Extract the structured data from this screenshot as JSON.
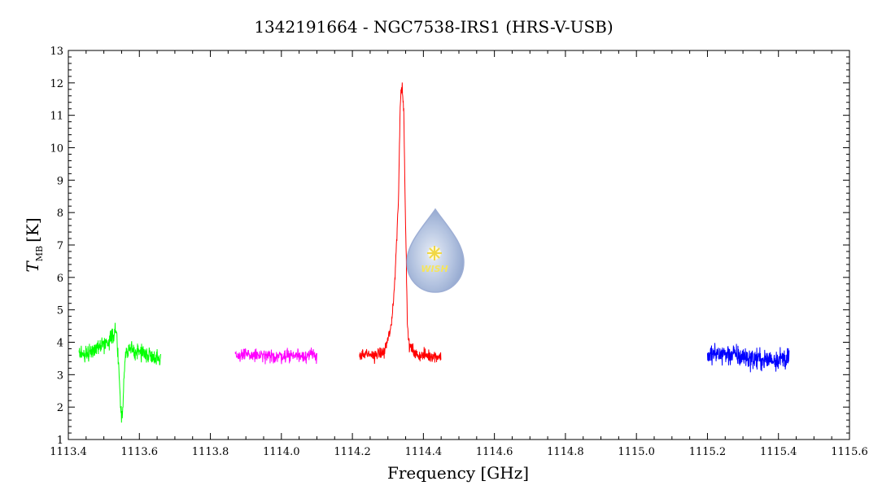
{
  "chart_data": {
    "type": "line",
    "title": "1342191664 - NGC7538-IRS1 (HRS-V-USB)",
    "xlabel": "Frequency [GHz]",
    "ylabel_main": "T",
    "ylabel_sub": "MB",
    "ylabel_unit": "[K]",
    "xlim": [
      1113.4,
      1115.6
    ],
    "ylim": [
      1,
      13
    ],
    "x_ticks": [
      "1113.4",
      "1113.6",
      "1113.8",
      "1114.0",
      "1114.2",
      "1114.4",
      "1114.6",
      "1114.8",
      "1115.0",
      "1115.2",
      "1115.4",
      "1115.6"
    ],
    "y_ticks": [
      "1",
      "2",
      "3",
      "4",
      "5",
      "6",
      "7",
      "8",
      "9",
      "10",
      "11",
      "12",
      "13"
    ],
    "grid": false,
    "series": [
      {
        "color": "#00ff00",
        "x": [
          1113.43,
          1113.46,
          1113.49,
          1113.51,
          1113.53,
          1113.535,
          1113.54,
          1113.545,
          1113.548,
          1113.552,
          1113.556,
          1113.56,
          1113.57,
          1113.6,
          1113.63,
          1113.66
        ],
        "y": [
          3.6,
          3.7,
          3.9,
          4.0,
          4.3,
          4.4,
          3.6,
          2.6,
          1.8,
          1.7,
          2.6,
          3.5,
          3.8,
          3.7,
          3.6,
          3.5
        ]
      },
      {
        "color": "#ff00ff",
        "x": [
          1113.87,
          1113.92,
          1113.97,
          1114.02,
          1114.06,
          1114.1
        ],
        "y": [
          3.6,
          3.6,
          3.55,
          3.6,
          3.6,
          3.6
        ]
      },
      {
        "color": "#ff0000",
        "x": [
          1114.22,
          1114.26,
          1114.29,
          1114.31,
          1114.32,
          1114.33,
          1114.335,
          1114.34,
          1114.345,
          1114.35,
          1114.355,
          1114.36,
          1114.38,
          1114.41,
          1114.45
        ],
        "y": [
          3.6,
          3.6,
          3.7,
          4.5,
          6.0,
          8.5,
          11.5,
          12.0,
          11.0,
          7.5,
          4.5,
          3.9,
          3.6,
          3.6,
          3.55
        ]
      },
      {
        "color": "#0000ff",
        "x": [
          1115.2,
          1115.24,
          1115.28,
          1115.32,
          1115.36,
          1115.4,
          1115.43
        ],
        "y": [
          3.6,
          3.65,
          3.6,
          3.5,
          3.45,
          3.5,
          3.5
        ]
      }
    ]
  },
  "logo": {
    "text": "WISH"
  }
}
